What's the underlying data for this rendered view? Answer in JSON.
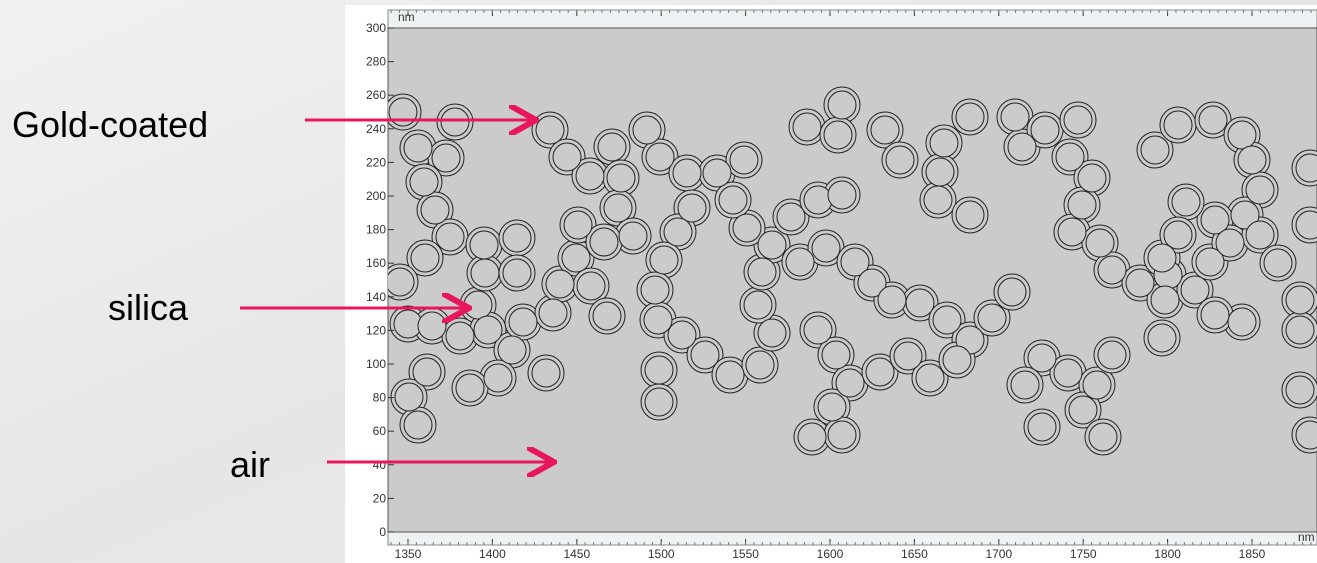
{
  "labels": {
    "gold": "Gold-coated",
    "silica": "silica",
    "air": "air"
  },
  "axes": {
    "x_unit": "nm",
    "y_unit": "nm",
    "xticks": [
      1350,
      1400,
      1450,
      1500,
      1550,
      1600,
      1650,
      1700,
      1750,
      1800,
      1850
    ],
    "yticks": [
      0,
      20,
      40,
      60,
      80,
      100,
      120,
      140,
      160,
      180,
      200,
      220,
      240,
      260,
      280,
      300
    ]
  }
}
